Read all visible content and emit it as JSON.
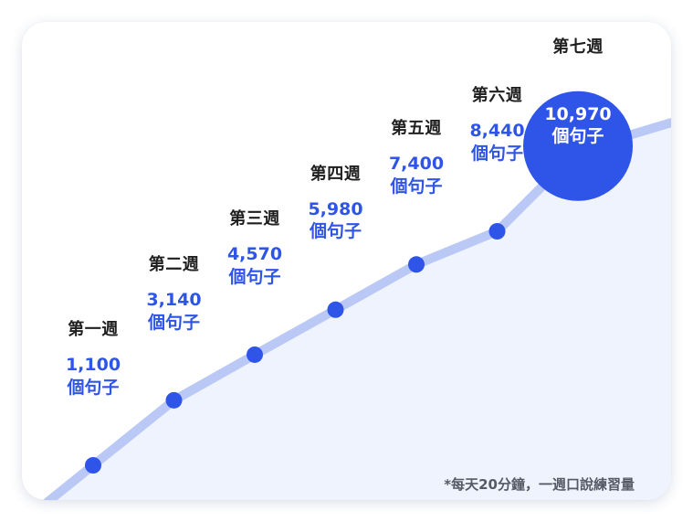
{
  "chart_data": {
    "type": "line",
    "categories": [
      "第一週",
      "第二週",
      "第三週",
      "第四週",
      "第五週",
      "第六週",
      "第七週"
    ],
    "values": [
      1100,
      3140,
      4570,
      5980,
      7400,
      8440,
      10970
    ],
    "value_labels": [
      "1,100",
      "3,140",
      "4,570",
      "5,980",
      "7,400",
      "8,440",
      "10,970"
    ],
    "unit": "個句子",
    "highlight_index": 6,
    "annotation": "*每天20分鐘，一週口說練習量"
  },
  "colors": {
    "line": "#bac8f6",
    "marker": "#2f55e8",
    "area": "#eef3fd",
    "highlight": "#2f55e8",
    "value_text": "#2f55e8",
    "label_text": "#1f1f1f"
  }
}
